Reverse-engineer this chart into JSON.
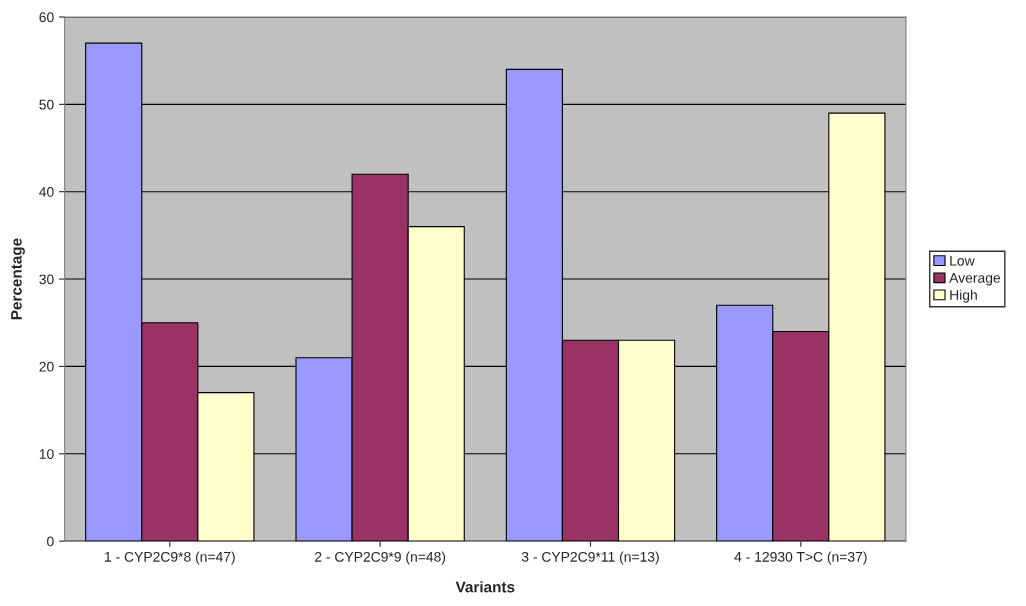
{
  "chart_data": {
    "type": "bar",
    "xlabel": "Variants",
    "ylabel": "Percentage",
    "categories": [
      "1 - CYP2C9*8 (n=47)",
      "2 - CYP2C9*9 (n=48)",
      "3 - CYP2C9*11 (n=13)",
      "4 - 12930 T>C (n=37)"
    ],
    "series": [
      {
        "name": "Low",
        "color": "#9999ff",
        "values": [
          57,
          21,
          54,
          27
        ]
      },
      {
        "name": "Average",
        "color": "#993366",
        "values": [
          25,
          42,
          23,
          24
        ]
      },
      {
        "name": "High",
        "color": "#ffffcc",
        "values": [
          17,
          36,
          23,
          49
        ]
      }
    ],
    "ylim": [
      0,
      60
    ],
    "yticks": [
      0,
      10,
      20,
      30,
      40,
      50,
      60
    ],
    "grid": "y",
    "legend": "right"
  }
}
